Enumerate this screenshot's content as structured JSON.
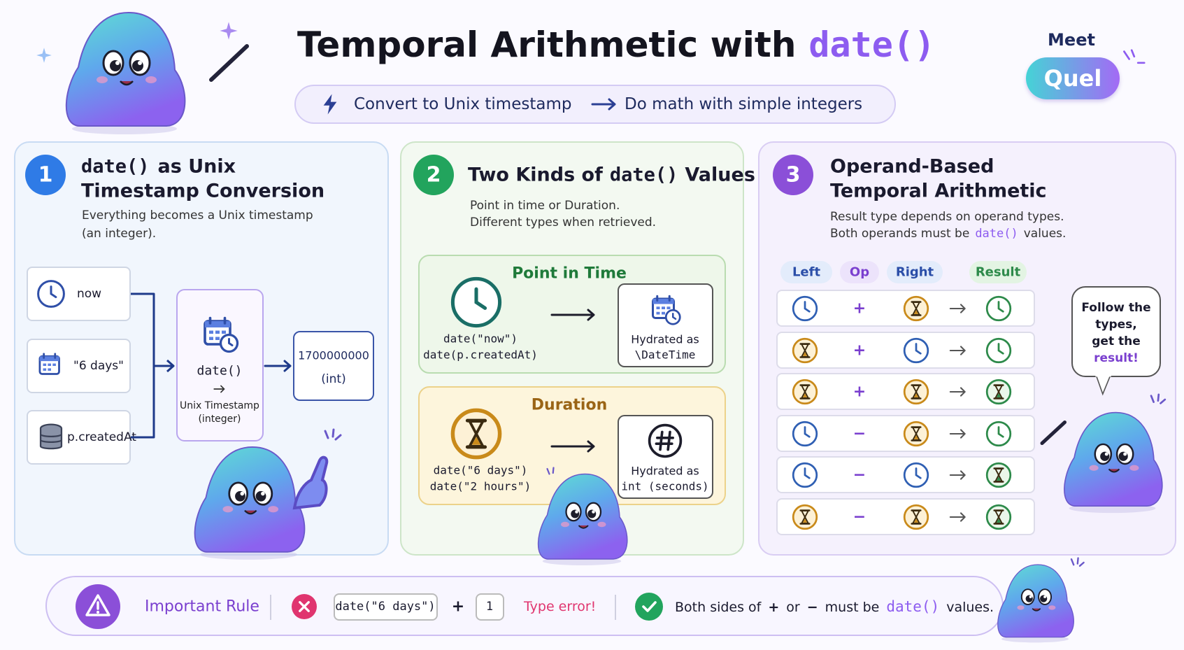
{
  "header": {
    "title": "Temporal Arithmetic with",
    "title_code": "date()",
    "subtitle_from": "Convert to Unix timestamp",
    "subtitle_to": "Do math with simple integers"
  },
  "badge": {
    "meet": "Meet",
    "name": "Quel"
  },
  "panels": [
    {
      "number": "1",
      "title_code": "date()",
      "title_line1": "as Unix",
      "title_line2": "Timestamp Conversion",
      "description": [
        "Everything becomes a Unix timestamp",
        "(an integer)."
      ],
      "inputs": [
        "now",
        "\"6 days\"",
        "p.createdAt"
      ],
      "function": "date()",
      "function_caption": "Unix Timestamp (integer)",
      "output_value": "1700000000",
      "output_type": "(int)"
    },
    {
      "number": "2",
      "title_before": "Two Kinds of",
      "title_code": "date()",
      "title_after": "Values",
      "description": [
        "Point in time or Duration.",
        "Different types when retrieved."
      ],
      "groups": [
        {
          "label": "Point in Time",
          "examples": [
            "date(\"now\")",
            "date(p.createdAt)"
          ],
          "result": [
            "Hydrated as",
            "\\DateTime"
          ]
        },
        {
          "label": "Duration",
          "examples": [
            "date(\"6 days\")",
            "date(\"2 hours\")"
          ],
          "result": [
            "Hydrated as",
            "int (seconds)"
          ]
        }
      ]
    },
    {
      "number": "3",
      "title": [
        "Operand-Based",
        "Temporal Arithmetic"
      ],
      "description": "Result type depends on operand types.",
      "note_before": "Both operands must be",
      "note_code": "date()",
      "note_after": "values.",
      "columns": [
        "Left",
        "Op",
        "Right",
        "Result"
      ],
      "ops": [
        "+",
        "+",
        "+",
        "−",
        "−",
        "−"
      ],
      "bubble": [
        "Follow the",
        "types,",
        "get the"
      ],
      "bubble_emphasis": "result!"
    }
  ],
  "rule": {
    "label": "Important Rule",
    "example_left": "date(\"6 days\")",
    "example_op": "+",
    "example_right": "1",
    "error": "Type error!",
    "text_before": "Both sides of",
    "op_plus": "+",
    "text_or": "or",
    "op_minus": "−",
    "text_must": "must be",
    "code": "date()",
    "text_after": "values."
  }
}
